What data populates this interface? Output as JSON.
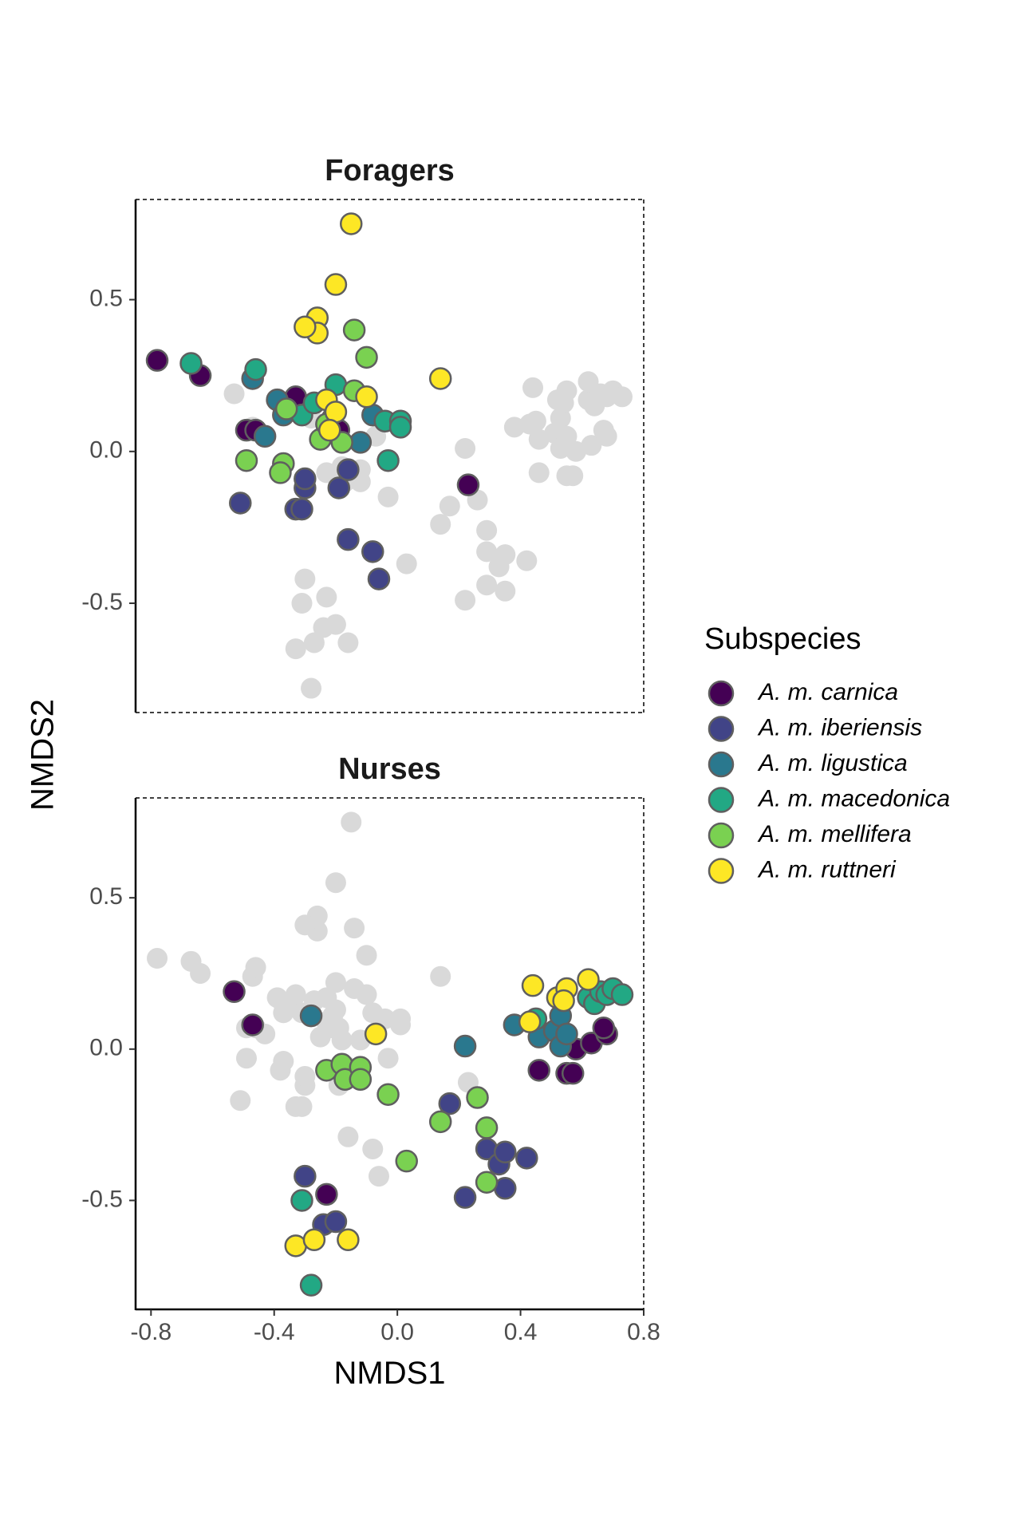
{
  "chart_data": {
    "type": "scatter",
    "xlabel": "NMDS1",
    "ylabel": "NMDS2",
    "xlim": [
      -0.85,
      0.8
    ],
    "ylim": [
      -0.86,
      0.83
    ],
    "xticks": [
      -0.8,
      -0.4,
      0.0,
      0.4,
      0.8
    ],
    "xtick_labels": [
      "-0.8",
      "-0.4",
      "0.0",
      "0.4",
      "0.8"
    ],
    "yticks": [
      -0.5,
      0.0,
      0.5
    ],
    "ytick_labels": [
      "-0.5",
      "0.0",
      "0.5"
    ],
    "grid": false,
    "legend": {
      "title": "Subspecies",
      "position": "right",
      "entries": [
        {
          "label": "A. m. carnica",
          "color": "#440154"
        },
        {
          "label": "A. m. iberiensis",
          "color": "#414487"
        },
        {
          "label": "A. m. ligustica",
          "color": "#2a788e"
        },
        {
          "label": "A. m. macedonica",
          "color": "#22a884"
        },
        {
          "label": "A. m. mellifera",
          "color": "#7ad151"
        },
        {
          "label": "A. m. ruttneri",
          "color": "#fde725"
        }
      ]
    },
    "background_color": "#d9d9d9",
    "panels": [
      {
        "title": "Foragers",
        "series": [
          {
            "subspecies": 0,
            "points": [
              [
                -0.78,
                0.3
              ],
              [
                -0.64,
                0.25
              ],
              [
                -0.49,
                0.07
              ],
              [
                -0.46,
                0.07
              ],
              [
                -0.37,
                0.15
              ],
              [
                -0.33,
                0.18
              ],
              [
                -0.21,
                0.11
              ],
              [
                -0.19,
                0.07
              ],
              [
                0.23,
                -0.11
              ]
            ]
          },
          {
            "subspecies": 1,
            "points": [
              [
                -0.51,
                -0.17
              ],
              [
                -0.33,
                -0.19
              ],
              [
                -0.31,
                -0.19
              ],
              [
                -0.3,
                -0.12
              ],
              [
                -0.3,
                -0.09
              ],
              [
                -0.19,
                -0.12
              ],
              [
                -0.16,
                -0.06
              ],
              [
                -0.16,
                -0.29
              ],
              [
                -0.08,
                -0.33
              ],
              [
                -0.06,
                -0.42
              ]
            ]
          },
          {
            "subspecies": 2,
            "points": [
              [
                -0.47,
                0.24
              ],
              [
                -0.43,
                0.05
              ],
              [
                -0.39,
                0.17
              ],
              [
                -0.37,
                0.12
              ],
              [
                -0.12,
                0.03
              ],
              [
                -0.08,
                0.12
              ]
            ]
          },
          {
            "subspecies": 3,
            "points": [
              [
                -0.67,
                0.29
              ],
              [
                -0.46,
                0.27
              ],
              [
                -0.31,
                0.12
              ],
              [
                -0.27,
                0.16
              ],
              [
                -0.2,
                0.22
              ],
              [
                -0.04,
                0.1
              ],
              [
                0.01,
                0.1
              ],
              [
                0.01,
                0.08
              ],
              [
                -0.03,
                -0.03
              ]
            ]
          },
          {
            "subspecies": 4,
            "points": [
              [
                -0.49,
                -0.03
              ],
              [
                -0.37,
                -0.04
              ],
              [
                -0.38,
                -0.07
              ],
              [
                -0.36,
                0.14
              ],
              [
                -0.25,
                0.04
              ],
              [
                -0.23,
                0.09
              ],
              [
                -0.18,
                0.03
              ],
              [
                -0.14,
                0.2
              ],
              [
                -0.14,
                0.4
              ],
              [
                -0.1,
                0.31
              ]
            ]
          },
          {
            "subspecies": 5,
            "points": [
              [
                -0.15,
                0.75
              ],
              [
                -0.2,
                0.55
              ],
              [
                -0.26,
                0.44
              ],
              [
                -0.26,
                0.39
              ],
              [
                -0.3,
                0.41
              ],
              [
                -0.23,
                0.17
              ],
              [
                -0.2,
                0.13
              ],
              [
                -0.22,
                0.07
              ],
              [
                -0.1,
                0.18
              ],
              [
                0.14,
                0.24
              ]
            ]
          }
        ]
      },
      {
        "title": "Nurses",
        "series": [
          {
            "subspecies": 0,
            "points": [
              [
                -0.53,
                0.19
              ],
              [
                -0.47,
                0.08
              ],
              [
                -0.23,
                -0.48
              ],
              [
                0.46,
                -0.07
              ],
              [
                0.55,
                -0.08
              ],
              [
                0.57,
                -0.08
              ],
              [
                0.58,
                0.0
              ],
              [
                0.63,
                0.02
              ],
              [
                0.68,
                0.05
              ],
              [
                0.67,
                0.07
              ]
            ]
          },
          {
            "subspecies": 1,
            "points": [
              [
                -0.3,
                -0.42
              ],
              [
                -0.24,
                -0.58
              ],
              [
                -0.2,
                -0.57
              ],
              [
                0.17,
                -0.18
              ],
              [
                0.22,
                -0.49
              ],
              [
                0.29,
                -0.33
              ],
              [
                0.33,
                -0.38
              ],
              [
                0.35,
                -0.34
              ],
              [
                0.35,
                -0.46
              ],
              [
                0.42,
                -0.36
              ]
            ]
          },
          {
            "subspecies": 2,
            "points": [
              [
                -0.28,
                0.11
              ],
              [
                0.22,
                0.01
              ],
              [
                0.38,
                0.08
              ],
              [
                0.46,
                0.04
              ],
              [
                0.51,
                0.06
              ],
              [
                0.53,
                0.01
              ],
              [
                0.53,
                0.11
              ],
              [
                0.55,
                0.05
              ]
            ]
          },
          {
            "subspecies": 3,
            "points": [
              [
                -0.31,
                -0.5
              ],
              [
                -0.28,
                -0.78
              ],
              [
                0.45,
                0.1
              ],
              [
                0.62,
                0.17
              ],
              [
                0.64,
                0.15
              ],
              [
                0.66,
                0.19
              ],
              [
                0.68,
                0.18
              ],
              [
                0.7,
                0.2
              ],
              [
                0.73,
                0.18
              ]
            ]
          },
          {
            "subspecies": 4,
            "points": [
              [
                -0.23,
                -0.07
              ],
              [
                -0.18,
                -0.05
              ],
              [
                -0.17,
                -0.1
              ],
              [
                -0.12,
                -0.06
              ],
              [
                -0.12,
                -0.1
              ],
              [
                -0.03,
                -0.15
              ],
              [
                0.03,
                -0.37
              ],
              [
                0.14,
                -0.24
              ],
              [
                0.26,
                -0.16
              ],
              [
                0.29,
                -0.26
              ],
              [
                0.29,
                -0.44
              ]
            ]
          },
          {
            "subspecies": 5,
            "points": [
              [
                -0.33,
                -0.65
              ],
              [
                -0.27,
                -0.63
              ],
              [
                -0.16,
                -0.63
              ],
              [
                -0.07,
                0.05
              ],
              [
                0.43,
                0.09
              ],
              [
                0.44,
                0.21
              ],
              [
                0.52,
                0.17
              ],
              [
                0.55,
                0.2
              ],
              [
                0.54,
                0.16
              ],
              [
                0.62,
                0.23
              ]
            ]
          }
        ]
      }
    ]
  }
}
